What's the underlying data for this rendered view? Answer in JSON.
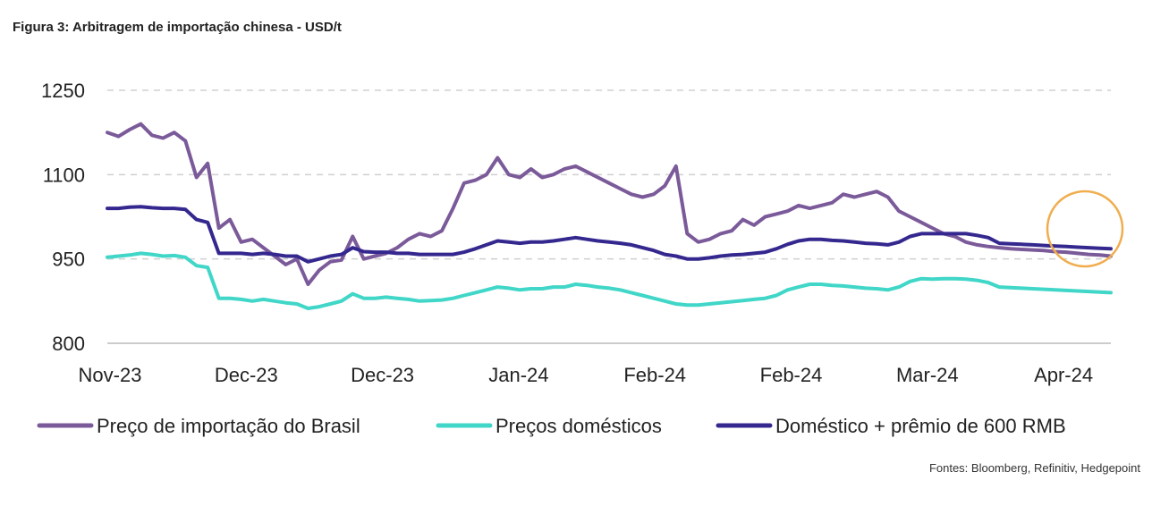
{
  "title": "Figura 3: Arbitragem de importação chinesa - USD/t",
  "source": "Fontes: Bloomberg, Refinitiv, Hedgepoint",
  "colors": {
    "brasil": "#7b5a9a",
    "domestico": "#40d6c8",
    "premio": "#34288f",
    "grid": "#d0d0d0",
    "axis": "#bbbbbb",
    "highlight_circle": "#f0ad4e"
  },
  "chart_data": {
    "type": "line",
    "title": "Figura 3: Arbitragem de importação chinesa - USD/t",
    "xlabel": "",
    "ylabel": "",
    "ylim": [
      800,
      1250
    ],
    "yticks": [
      800,
      950,
      1100,
      1250
    ],
    "grid": true,
    "legend_position": "bottom",
    "x_tick_labels": [
      "Nov-23",
      "Dec-23",
      "Dec-23",
      "Jan-24",
      "Feb-24",
      "Feb-24",
      "Mar-24",
      "Apr-24"
    ],
    "x": [
      0,
      2,
      4,
      6,
      8,
      10,
      12,
      14,
      16,
      18,
      20,
      22,
      24,
      26,
      28,
      30,
      32,
      34,
      36,
      38,
      40,
      42,
      44,
      46,
      48,
      50,
      52,
      54,
      56,
      58,
      60,
      62,
      64,
      66,
      68,
      70,
      72,
      74,
      76,
      78,
      80,
      82,
      84,
      86,
      88,
      90,
      92,
      94,
      96,
      98,
      100,
      102,
      104,
      106,
      108,
      110,
      112,
      114,
      116,
      118,
      120,
      122,
      124,
      126,
      128,
      130,
      132,
      134,
      136,
      138,
      140,
      142,
      144,
      146,
      148,
      150,
      152,
      154,
      156,
      158,
      160,
      162,
      164,
      166,
      168,
      170,
      172,
      174,
      176,
      178,
      180
    ],
    "series": [
      {
        "name": "Preço de importação do Brasil",
        "values": [
          1175,
          1168,
          1180,
          1190,
          1170,
          1165,
          1175,
          1160,
          1095,
          1120,
          1005,
          1020,
          980,
          985,
          970,
          955,
          940,
          950,
          905,
          930,
          945,
          948,
          990,
          950,
          955,
          960,
          970,
          985,
          995,
          990,
          1000,
          1040,
          1085,
          1090,
          1100,
          1130,
          1100,
          1095,
          1110,
          1095,
          1100,
          1110,
          1115,
          1105,
          1095,
          1085,
          1075,
          1065,
          1060,
          1065,
          1080,
          1115,
          995,
          980,
          985,
          995,
          1000,
          1020,
          1010,
          1025,
          1030,
          1035,
          1045,
          1040,
          1045,
          1050,
          1065,
          1060,
          1065,
          1070,
          1060,
          1035,
          1025,
          1015,
          1005,
          995,
          990,
          980,
          975,
          972,
          970,
          968,
          967,
          966,
          965,
          963,
          962,
          960,
          958,
          957,
          955
        ]
      },
      {
        "name": "Preços domésticos",
        "values": [
          953,
          955,
          957,
          960,
          958,
          955,
          956,
          953,
          938,
          935,
          880,
          880,
          878,
          875,
          878,
          875,
          872,
          870,
          862,
          865,
          870,
          875,
          888,
          880,
          880,
          882,
          880,
          878,
          875,
          876,
          877,
          880,
          885,
          890,
          895,
          900,
          898,
          895,
          897,
          897,
          900,
          900,
          905,
          903,
          900,
          898,
          895,
          890,
          885,
          880,
          875,
          870,
          868,
          868,
          870,
          872,
          874,
          876,
          878,
          880,
          885,
          895,
          900,
          905,
          905,
          903,
          902,
          900,
          898,
          897,
          895,
          900,
          910,
          915,
          914,
          915,
          915,
          914,
          912,
          908,
          900,
          899,
          898,
          897,
          896,
          895,
          894,
          893,
          892,
          891,
          890
        ]
      },
      {
        "name": "Doméstico + prêmio de 600 RMB",
        "values": [
          1040,
          1040,
          1042,
          1043,
          1041,
          1040,
          1040,
          1038,
          1020,
          1015,
          960,
          960,
          960,
          958,
          960,
          958,
          955,
          955,
          945,
          950,
          955,
          958,
          970,
          963,
          962,
          962,
          960,
          960,
          958,
          958,
          958,
          958,
          962,
          968,
          975,
          982,
          980,
          978,
          980,
          980,
          982,
          985,
          988,
          985,
          982,
          980,
          978,
          975,
          970,
          965,
          958,
          955,
          950,
          950,
          952,
          955,
          957,
          958,
          960,
          962,
          968,
          976,
          982,
          985,
          985,
          983,
          982,
          980,
          978,
          977,
          975,
          980,
          990,
          995,
          995,
          995,
          995,
          995,
          992,
          988,
          978,
          977,
          976,
          975,
          974,
          973,
          972,
          971,
          970,
          969,
          968
        ]
      }
    ]
  },
  "legend": [
    {
      "label": "Preço de importação do Brasil"
    },
    {
      "label": "Preços domésticos"
    },
    {
      "label": "Doméstico + prêmio de 600 RMB"
    }
  ]
}
